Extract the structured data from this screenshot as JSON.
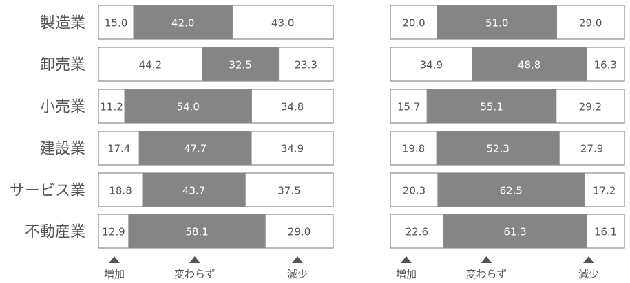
{
  "chart_data": [
    {
      "type": "bar",
      "stacked": true,
      "orientation": "horizontal",
      "categories": [
        "製造業",
        "卸売業",
        "小売業",
        "建設業",
        "サービス業",
        "不動産業"
      ],
      "series": [
        {
          "name": "増加",
          "values": [
            15.0,
            44.2,
            11.2,
            17.4,
            18.8,
            12.9
          ]
        },
        {
          "name": "変わらず",
          "values": [
            42.0,
            32.5,
            54.0,
            47.7,
            43.7,
            58.1
          ]
        },
        {
          "name": "減少",
          "values": [
            43.0,
            23.3,
            34.8,
            34.9,
            37.5,
            29.0
          ]
        }
      ],
      "xlim": [
        0,
        100
      ]
    },
    {
      "type": "bar",
      "stacked": true,
      "orientation": "horizontal",
      "categories": [
        "製造業",
        "卸売業",
        "小売業",
        "建設業",
        "サービス業",
        "不動産業"
      ],
      "series": [
        {
          "name": "増加",
          "values": [
            20.0,
            34.9,
            15.7,
            19.8,
            20.3,
            22.6
          ]
        },
        {
          "name": "変わらず",
          "values": [
            51.0,
            48.8,
            55.1,
            52.3,
            62.5,
            61.3
          ]
        },
        {
          "name": "減少",
          "values": [
            29.0,
            16.3,
            29.2,
            27.9,
            17.2,
            16.1
          ]
        }
      ],
      "xlim": [
        0,
        100
      ]
    }
  ],
  "colors": {
    "increase": "#ffffff",
    "unchanged": "#858585",
    "decrease": "#ffffff",
    "border": "#8a8a8a",
    "text": "#555555",
    "marker": "#555555"
  }
}
